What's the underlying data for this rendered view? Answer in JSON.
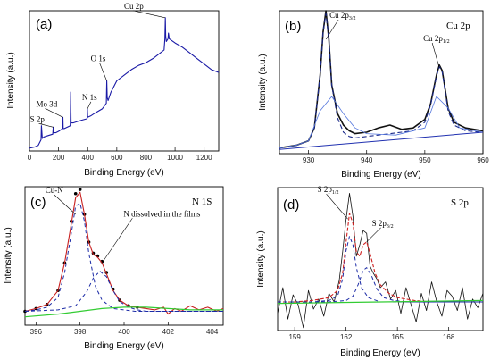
{
  "chart_data": [
    {
      "id": "a",
      "type": "line",
      "panel_label": "(a)",
      "title": "",
      "xlabel": "Binding Energy (eV)",
      "ylabel": "Intensity (a.u.)",
      "xlim": [
        0,
        1300
      ],
      "ylim": [
        0,
        100
      ],
      "xticks": [
        0,
        200,
        400,
        600,
        800,
        1000,
        1200
      ],
      "y_tick_labels": false,
      "series": [
        {
          "color": "#1a1aa6",
          "x": [
            0,
            40,
            60,
            80,
            82,
            88,
            100,
            130,
            160,
            163,
            165,
            180,
            200,
            228,
            230,
            232,
            240,
            280,
            283,
            286,
            300,
            330,
            360,
            396,
            398,
            400,
            420,
            450,
            500,
            528,
            531,
            534,
            540,
            560,
            580,
            600,
            650,
            700,
            750,
            800,
            850,
            900,
            925,
            930,
            933,
            936,
            940,
            952,
            955,
            960,
            1000,
            1050,
            1100,
            1150,
            1200,
            1250,
            1300
          ],
          "y": [
            2,
            3,
            4,
            8,
            18,
            9,
            10,
            11,
            12,
            17,
            13,
            13,
            14,
            16,
            24,
            16,
            16,
            18,
            42,
            20,
            20,
            21,
            22,
            23,
            30,
            24,
            25,
            27,
            30,
            34,
            50,
            38,
            36,
            42,
            46,
            50,
            54,
            58,
            61,
            63,
            66,
            70,
            72,
            80,
            95,
            82,
            78,
            80,
            84,
            80,
            77,
            74,
            70,
            66,
            62,
            58,
            56
          ]
        }
      ],
      "annotations": [
        {
          "text": "Cu 2p",
          "x": 932,
          "y": 95
        },
        {
          "text": "O 1s",
          "x": 531,
          "y": 50
        },
        {
          "text": "N 1s",
          "x": 398,
          "y": 30
        },
        {
          "text": "Mo 3d",
          "x": 230,
          "y": 24
        },
        {
          "text": "S 2p",
          "x": 163,
          "y": 17
        }
      ]
    },
    {
      "id": "b",
      "type": "line",
      "panel_label": "(b)",
      "title": "Cu 2p",
      "xlabel": "Binding Energy (eV)",
      "ylabel": "Intensity (a.u.)",
      "xlim": [
        925,
        960
      ],
      "ylim": [
        0,
        100
      ],
      "xticks": [
        930,
        940,
        950,
        960
      ],
      "y_tick_labels": false,
      "series": [
        {
          "style": "black-solid",
          "x": [
            925,
            928,
            930,
            931,
            932,
            932.5,
            933,
            933.5,
            934,
            935,
            936,
            937,
            938,
            940,
            942,
            944,
            946,
            948,
            950,
            951,
            952,
            952.5,
            953,
            954,
            955,
            957,
            960
          ],
          "y": [
            4,
            6,
            9,
            18,
            55,
            85,
            100,
            80,
            48,
            28,
            20,
            16,
            14,
            15,
            18,
            20,
            17,
            18,
            24,
            35,
            55,
            62,
            58,
            32,
            22,
            18,
            16
          ]
        },
        {
          "style": "navy-dashed",
          "x": [
            925,
            928,
            930,
            931,
            932,
            932.5,
            933,
            933.5,
            934,
            935,
            936,
            937,
            938,
            940,
            942,
            944,
            946,
            948,
            950,
            951,
            952,
            952.5,
            953,
            954,
            955,
            957,
            960
          ],
          "y": [
            4,
            6,
            9,
            18,
            55,
            85,
            98,
            80,
            48,
            25,
            15,
            12,
            11,
            12,
            13,
            14,
            15,
            16,
            22,
            34,
            54,
            61,
            57,
            30,
            20,
            16,
            15
          ]
        },
        {
          "style": "blue-thin",
          "x": [
            925,
            928,
            930,
            932,
            934,
            936,
            938,
            940,
            945,
            950,
            952,
            954,
            956,
            960
          ],
          "y": [
            4,
            6,
            9,
            30,
            40,
            28,
            18,
            14,
            13,
            18,
            40,
            32,
            18,
            15
          ]
        },
        {
          "style": "blue-baseline",
          "x": [
            925,
            960
          ],
          "y": [
            3,
            15
          ]
        }
      ],
      "annotations": [
        {
          "text": "Cu 2p",
          "sub": "3/2",
          "x": 933,
          "y": 80
        },
        {
          "text": "Cu 2p",
          "sub": "1/2",
          "x": 952.5,
          "y": 60
        }
      ]
    },
    {
      "id": "c",
      "type": "line",
      "panel_label": "(c)",
      "title": "N 1S",
      "xlabel": "Binding Energy (eV)",
      "ylabel": "Intensity (a.u.)",
      "xlim": [
        395.5,
        404.5
      ],
      "ylim": [
        0,
        100
      ],
      "xticks": [
        396,
        398,
        400,
        402,
        404
      ],
      "y_tick_labels": false,
      "series": [
        {
          "style": "black-dots",
          "x": [
            395.5,
            396,
            396.5,
            397,
            397.3,
            397.6,
            397.8,
            398,
            398.2,
            398.4,
            398.6,
            398.8,
            399,
            399.2,
            399.5,
            399.8,
            400.2,
            400.6
          ],
          "y": [
            10,
            12,
            15,
            25,
            45,
            75,
            95,
            98,
            80,
            60,
            52,
            50,
            46,
            38,
            26,
            18,
            14,
            13
          ]
        },
        {
          "style": "red-solid",
          "x": [
            395.5,
            396,
            396.5,
            397,
            397.3,
            397.6,
            397.8,
            398,
            398.2,
            398.4,
            398.6,
            398.8,
            399,
            399.2,
            399.5,
            399.8,
            400.2,
            400.6,
            401,
            401.4,
            401.8,
            402,
            402.3,
            402.6,
            403,
            403.4,
            403.8,
            404.2,
            404.5
          ],
          "y": [
            10,
            12,
            15,
            25,
            45,
            73,
            92,
            96,
            80,
            60,
            51,
            49,
            45,
            37,
            25,
            18,
            14,
            13,
            12,
            11,
            13,
            8,
            12,
            10,
            14,
            11,
            13,
            10,
            12
          ]
        },
        {
          "style": "blue-dashed",
          "x": [
            395.5,
            396,
            396.5,
            397,
            397.3,
            397.6,
            397.8,
            398,
            398.2,
            398.4,
            398.7,
            399,
            399.5,
            400,
            400.5,
            401,
            402,
            403,
            404.5
          ],
          "y": [
            10,
            11,
            13,
            20,
            38,
            66,
            86,
            88,
            75,
            52,
            28,
            18,
            12,
            11,
            10,
            10,
            10,
            10,
            10
          ]
        },
        {
          "style": "blue-dashed",
          "x": [
            395.5,
            397,
            397.8,
            398.3,
            398.6,
            398.9,
            399.2,
            399.5,
            399.8,
            400.2,
            400.6,
            401,
            402,
            403,
            404.5
          ],
          "y": [
            10,
            11,
            14,
            24,
            34,
            39,
            35,
            25,
            17,
            13,
            11,
            10,
            10,
            10,
            10
          ]
        },
        {
          "style": "green-baseline",
          "x": [
            395.5,
            397,
            398,
            399,
            400,
            401,
            402,
            403,
            404,
            404.5
          ],
          "y": [
            6,
            8,
            10,
            12,
            13,
            13,
            12,
            11,
            11,
            11
          ]
        }
      ],
      "annotations": [
        {
          "text": "Cu-N",
          "x": 397.8,
          "y": 80
        },
        {
          "text": "N dissolved in the films",
          "x": 399,
          "y": 45
        }
      ]
    },
    {
      "id": "d",
      "type": "line",
      "panel_label": "(d)",
      "title": "S 2p",
      "xlabel": "Binding Energy (eV)",
      "ylabel": "Intensity (a.u.)",
      "xlim": [
        158,
        170
      ],
      "ylim": [
        0,
        100
      ],
      "xticks": [
        159,
        162,
        165,
        168
      ],
      "y_tick_labels": false,
      "series": [
        {
          "style": "black-noisy",
          "x": [
            158,
            158.3,
            158.6,
            158.9,
            159.2,
            159.5,
            159.8,
            160.1,
            160.4,
            160.7,
            161,
            161.3,
            161.6,
            161.8,
            162,
            162.2,
            162.4,
            162.6,
            162.8,
            163,
            163.2,
            163.4,
            163.6,
            163.8,
            164,
            164.3,
            164.6,
            164.9,
            165.2,
            165.5,
            165.8,
            166.1,
            166.4,
            166.7,
            167,
            167.3,
            167.6,
            167.9,
            168.2,
            168.5,
            168.8,
            169.1,
            169.4,
            169.7,
            170
          ],
          "y": [
            12,
            30,
            8,
            25,
            18,
            2,
            28,
            15,
            22,
            10,
            26,
            20,
            35,
            55,
            78,
            96,
            80,
            52,
            60,
            70,
            68,
            45,
            40,
            36,
            30,
            34,
            22,
            28,
            12,
            30,
            18,
            6,
            26,
            14,
            34,
            20,
            10,
            28,
            24,
            14,
            30,
            8,
            22,
            16,
            26
          ]
        },
        {
          "style": "red-dashed",
          "x": [
            158,
            159,
            160,
            161,
            161.5,
            161.8,
            162,
            162.2,
            162.4,
            162.6,
            162.8,
            163,
            163.2,
            163.4,
            163.7,
            164,
            164.5,
            165,
            166,
            167,
            168,
            170
          ],
          "y": [
            20,
            20,
            21,
            23,
            28,
            40,
            62,
            82,
            75,
            55,
            52,
            60,
            62,
            54,
            40,
            32,
            26,
            23,
            21,
            20,
            20,
            20
          ]
        },
        {
          "style": "blue-dashed",
          "x": [
            158,
            160,
            161,
            161.5,
            161.8,
            162,
            162.2,
            162.4,
            162.6,
            162.9,
            163.3,
            164,
            165,
            170
          ],
          "y": [
            20,
            20,
            21,
            24,
            36,
            56,
            66,
            60,
            44,
            30,
            23,
            20,
            20,
            20
          ]
        },
        {
          "style": "blue-dashed",
          "x": [
            158,
            161,
            162,
            162.4,
            162.7,
            163,
            163.2,
            163.5,
            163.8,
            164.2,
            164.8,
            165.5,
            170
          ],
          "y": [
            20,
            20,
            21,
            24,
            32,
            42,
            44,
            38,
            29,
            23,
            21,
            20,
            20
          ]
        },
        {
          "style": "green-baseline",
          "x": [
            158,
            170
          ],
          "y": [
            19,
            21
          ]
        }
      ],
      "annotations": [
        {
          "text": "S 2p",
          "sub": "1/2",
          "x": 162.1,
          "y": 78
        },
        {
          "text": "S 2p",
          "sub": "3/2",
          "x": 163.2,
          "y": 62
        }
      ]
    }
  ]
}
